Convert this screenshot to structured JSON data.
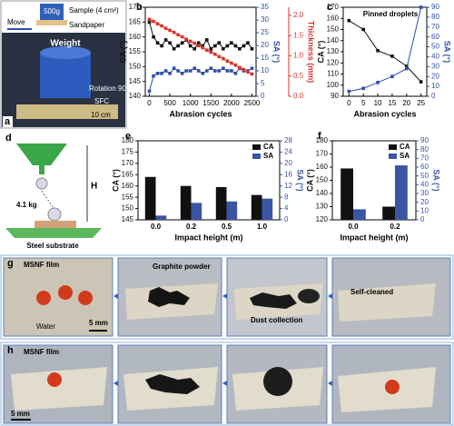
{
  "panels": {
    "a": {
      "label": "a",
      "move": "Move",
      "weight_top": "500g",
      "sample": "Sample (4 cm²)",
      "sandpaper": "Sandpaper",
      "weight": "Weight",
      "rotation": "Rotation 90°",
      "sfc": "SFC",
      "scale": "10 cm"
    },
    "d": {
      "label": "d",
      "height": "H",
      "mass": "4.1 kg",
      "substrate": "Steel substrate"
    },
    "g": {
      "label": "g",
      "film": "MSNF film",
      "powder": "Graphite powder",
      "collection": "Dust collection",
      "cleaned": "Self-cleaned",
      "water": "Water",
      "scale": "5 mm"
    },
    "h": {
      "label": "h",
      "film": "MSNF film",
      "scale": "5 mm"
    }
  },
  "chart_data": [
    {
      "type": "line",
      "panel": "b",
      "xlabel": "Abrasion cycles",
      "ylabel": "CA (°)",
      "y2label": "SA (°)",
      "y3label": "Thickness (mm)",
      "x": [
        0,
        100,
        200,
        300,
        400,
        500,
        600,
        700,
        800,
        900,
        1000,
        1100,
        1200,
        1300,
        1400,
        1500,
        1600,
        1700,
        1800,
        1900,
        2000,
        2100,
        2200,
        2300,
        2400,
        2500
      ],
      "xlim": [
        -100,
        2600
      ],
      "xticks": [
        0,
        500,
        1000,
        1500,
        2000,
        2500
      ],
      "ylim": [
        140,
        170
      ],
      "yticks": [
        140,
        145,
        150,
        155,
        160,
        165,
        170
      ],
      "y2lim": [
        0,
        35
      ],
      "y2ticks": [
        0,
        5,
        10,
        15,
        20,
        25,
        30,
        35
      ],
      "y3lim": [
        0,
        2.2
      ],
      "y3ticks": [
        {
          "value": 0,
          "label": "0.0"
        },
        0.5,
        {
          "value": 1,
          "label": "1.0"
        },
        1.5,
        {
          "value": 2,
          "label": "2.0"
        }
      ],
      "series": [
        {
          "color": "#111111",
          "axis": "y",
          "values": [
            165,
            160,
            158,
            157,
            159,
            158,
            156,
            157,
            158,
            159,
            157,
            156,
            158,
            157,
            159,
            156,
            157,
            158,
            156,
            157,
            158,
            157,
            156,
            157,
            158,
            156
          ]
        },
        {
          "color": "#2f4ea8",
          "axis": "y2",
          "values": [
            2,
            8,
            9,
            9,
            10,
            9,
            11,
            10,
            9,
            10,
            10,
            11,
            10,
            9,
            10,
            11,
            10,
            10,
            11,
            10,
            10,
            9,
            11,
            10,
            10,
            11
          ]
        },
        {
          "color": "#d9342b",
          "axis": "y3",
          "values": [
            1.9,
            1.85,
            1.79,
            1.74,
            1.68,
            1.63,
            1.58,
            1.52,
            1.47,
            1.41,
            1.36,
            1.31,
            1.25,
            1.2,
            1.14,
            1.09,
            1.04,
            0.98,
            0.93,
            0.87,
            0.82,
            0.77,
            0.71,
            0.66,
            0.6,
            0.55
          ]
        }
      ]
    },
    {
      "type": "line",
      "panel": "c",
      "xlabel": "Abrasion cycles",
      "ylabel": "CA (°)",
      "y2label": "SA (°)",
      "annotation": "Pinned droplets",
      "x": [
        0,
        5,
        10,
        15,
        20,
        25
      ],
      "xlim": [
        -2,
        27
      ],
      "xticks": [
        0,
        5,
        10,
        15,
        20,
        25
      ],
      "ylim": [
        90,
        170
      ],
      "yticks": [
        90,
        100,
        110,
        120,
        130,
        140,
        150,
        160,
        170
      ],
      "y2lim": [
        0,
        90
      ],
      "y2ticks": [
        0,
        10,
        20,
        30,
        40,
        50,
        60,
        70,
        80,
        90
      ],
      "series": [
        {
          "color": "#111111",
          "axis": "y",
          "values": [
            158,
            150,
            131,
            126,
            117,
            103
          ]
        },
        {
          "color": "#2f4ea8",
          "axis": "y2",
          "values": [
            5,
            8,
            14,
            20,
            28,
            90
          ]
        }
      ]
    },
    {
      "type": "bar",
      "panel": "e",
      "xlabel": "Impact height (m)",
      "ylabel": "CA (°)",
      "y2label": "SA (°)",
      "legend": true,
      "categories": [
        "0.0",
        "0.2",
        "0.5",
        "1.0"
      ],
      "ylim": [
        145,
        180
      ],
      "yticks": [
        145,
        150,
        155,
        160,
        165,
        170,
        175,
        180
      ],
      "y2lim": [
        0,
        28
      ],
      "y2ticks": [
        0,
        4,
        8,
        12,
        16,
        20,
        24,
        28
      ],
      "series": [
        {
          "name": "CA",
          "color": "#111111",
          "axis": "y",
          "values": [
            164,
            160,
            159.5,
            156
          ]
        },
        {
          "name": "SA",
          "color": "#3a55a4",
          "axis": "y2",
          "values": [
            1.5,
            6,
            6.5,
            7.5
          ]
        }
      ]
    },
    {
      "type": "bar",
      "panel": "f",
      "xlabel": "Impact height (m)",
      "ylabel": "CA (°)",
      "y2label": "SA (°)",
      "legend": true,
      "categories": [
        "0.0",
        "0.2"
      ],
      "ylim": [
        120,
        180
      ],
      "yticks": [
        120,
        130,
        140,
        150,
        160,
        170,
        180
      ],
      "y2lim": [
        0,
        90
      ],
      "y2ticks": [
        0,
        10,
        20,
        30,
        40,
        50,
        60,
        70,
        80,
        90
      ],
      "series": [
        {
          "name": "CA",
          "color": "#111111",
          "axis": "y",
          "values": [
            159,
            130
          ]
        },
        {
          "name": "SA",
          "color": "#3a55a4",
          "axis": "y2",
          "values": [
            12,
            62
          ]
        }
      ]
    }
  ]
}
